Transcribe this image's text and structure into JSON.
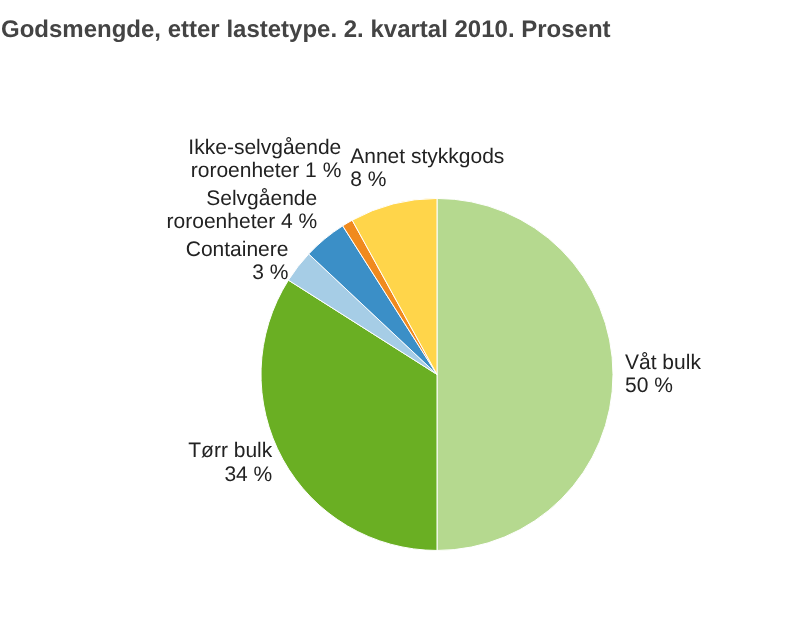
{
  "chart_data": {
    "type": "pie",
    "title": "Godsmengde, etter lastetype. 2. kvartal 2010. Prosent",
    "categories": [
      "Våt bulk",
      "Tørr bulk",
      "Containere",
      "Selvgående roroenheter",
      "Ikke-selvgående roroenheter",
      "Annet stykkgods"
    ],
    "values": [
      50,
      34,
      3,
      4,
      1,
      8
    ],
    "value_labels": [
      "50 %",
      "34 %",
      "3 %",
      "4 %",
      "1 %",
      "8 %"
    ],
    "colors": [
      "#b5d98f",
      "#6aaf23",
      "#a6cde6",
      "#3b8fc7",
      "#f08a1e",
      "#ffd54a"
    ]
  }
}
